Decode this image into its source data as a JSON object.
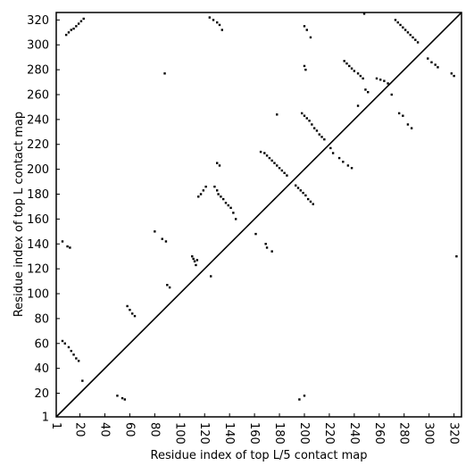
{
  "chart_data": {
    "type": "scatter",
    "title": "",
    "xlabel": "Residue index of top L/5 contact map",
    "ylabel": "Residue index of top L contact map",
    "xlim": [
      1,
      326
    ],
    "ylim": [
      1,
      326
    ],
    "xticks": [
      1,
      20,
      40,
      60,
      80,
      100,
      120,
      140,
      160,
      180,
      200,
      220,
      240,
      260,
      280,
      300,
      320
    ],
    "yticks": [
      1,
      20,
      40,
      60,
      80,
      100,
      120,
      140,
      160,
      180,
      200,
      220,
      240,
      260,
      280,
      300,
      320
    ],
    "grid": false,
    "legend": "none",
    "diagonal": {
      "from": [
        1,
        1
      ],
      "to": [
        326,
        326
      ],
      "color": "#000000"
    },
    "marker_color": "#000000",
    "series": [
      {
        "points": [
          [
            6,
            62
          ],
          [
            8,
            60
          ],
          [
            11,
            57
          ],
          [
            13,
            54
          ],
          [
            15,
            51
          ],
          [
            17,
            48
          ],
          [
            19,
            46
          ],
          [
            22,
            30
          ],
          [
            6,
            142
          ],
          [
            10,
            138
          ],
          [
            12,
            137
          ],
          [
            50,
            18
          ],
          [
            54,
            16
          ],
          [
            56,
            15
          ],
          [
            58,
            90
          ],
          [
            60,
            87
          ],
          [
            62,
            84
          ],
          [
            64,
            82
          ],
          [
            80,
            150
          ],
          [
            86,
            144
          ],
          [
            89,
            142
          ],
          [
            90,
            107
          ],
          [
            92,
            105
          ],
          [
            110,
            130
          ],
          [
            111,
            128
          ],
          [
            112,
            126
          ],
          [
            113,
            123
          ],
          [
            114,
            127
          ],
          [
            115,
            178
          ],
          [
            117,
            180
          ],
          [
            119,
            183
          ],
          [
            121,
            186
          ],
          [
            125,
            114
          ],
          [
            128,
            186
          ],
          [
            130,
            183
          ],
          [
            131,
            180
          ],
          [
            133,
            178
          ],
          [
            135,
            176
          ],
          [
            137,
            173
          ],
          [
            139,
            171
          ],
          [
            141,
            169
          ],
          [
            143,
            165
          ],
          [
            145,
            160
          ],
          [
            161,
            148
          ],
          [
            169,
            140
          ],
          [
            170,
            137
          ],
          [
            174,
            134
          ],
          [
            165,
            214
          ],
          [
            168,
            213
          ],
          [
            170,
            211
          ],
          [
            172,
            209
          ],
          [
            174,
            207
          ],
          [
            176,
            205
          ],
          [
            178,
            203
          ],
          [
            180,
            201
          ],
          [
            182,
            199
          ],
          [
            184,
            197
          ],
          [
            186,
            195
          ],
          [
            193,
            187
          ],
          [
            195,
            185
          ],
          [
            197,
            183
          ],
          [
            199,
            181
          ],
          [
            201,
            179
          ],
          [
            203,
            176
          ],
          [
            205,
            174
          ],
          [
            207,
            172
          ],
          [
            198,
            245
          ],
          [
            200,
            243
          ],
          [
            202,
            241
          ],
          [
            204,
            239
          ],
          [
            206,
            236
          ],
          [
            208,
            233
          ],
          [
            210,
            231
          ],
          [
            212,
            228
          ],
          [
            214,
            226
          ],
          [
            216,
            224
          ],
          [
            221,
            217
          ],
          [
            223,
            213
          ],
          [
            228,
            209
          ],
          [
            231,
            206
          ],
          [
            235,
            203
          ],
          [
            238,
            201
          ],
          [
            232,
            287
          ],
          [
            234,
            285
          ],
          [
            236,
            283
          ],
          [
            238,
            281
          ],
          [
            240,
            279
          ],
          [
            243,
            277
          ],
          [
            245,
            275
          ],
          [
            247,
            273
          ],
          [
            249,
            264
          ],
          [
            251,
            262
          ],
          [
            243,
            251
          ],
          [
            258,
            273
          ],
          [
            261,
            272
          ],
          [
            264,
            271
          ],
          [
            267,
            269
          ],
          [
            270,
            260
          ],
          [
            273,
            320
          ],
          [
            275,
            318
          ],
          [
            277,
            316
          ],
          [
            279,
            314
          ],
          [
            281,
            312
          ],
          [
            283,
            310
          ],
          [
            285,
            308
          ],
          [
            287,
            306
          ],
          [
            289,
            304
          ],
          [
            291,
            302
          ],
          [
            276,
            245
          ],
          [
            279,
            243
          ],
          [
            283,
            236
          ],
          [
            286,
            233
          ],
          [
            299,
            289
          ],
          [
            302,
            286
          ],
          [
            305,
            284
          ],
          [
            307,
            282
          ],
          [
            318,
            277
          ],
          [
            320,
            275
          ],
          [
            9,
            308
          ],
          [
            11,
            310
          ],
          [
            13,
            312
          ],
          [
            15,
            313
          ],
          [
            17,
            315
          ],
          [
            19,
            317
          ],
          [
            21,
            319
          ],
          [
            23,
            321
          ],
          [
            124,
            322
          ],
          [
            127,
            320
          ],
          [
            130,
            318
          ],
          [
            132,
            316
          ],
          [
            134,
            312
          ],
          [
            200,
            315
          ],
          [
            202,
            312
          ],
          [
            205,
            306
          ],
          [
            200,
            283
          ],
          [
            201,
            280
          ],
          [
            248,
            325
          ],
          [
            196,
            15
          ],
          [
            200,
            18
          ],
          [
            88,
            277
          ],
          [
            178,
            244
          ],
          [
            130,
            205
          ],
          [
            132,
            203
          ],
          [
            322,
            130
          ]
        ]
      }
    ]
  }
}
